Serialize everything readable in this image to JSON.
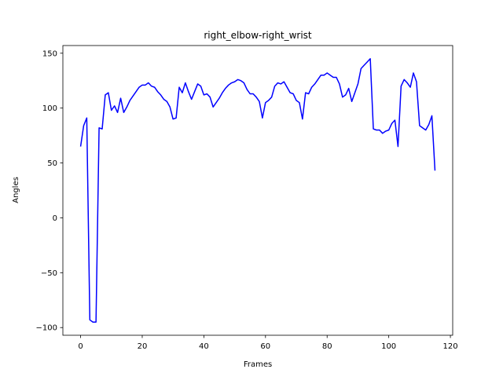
{
  "chart_data": {
    "type": "line",
    "title": "right_elbow-right_wrist",
    "xlabel": "Frames",
    "ylabel": "Angles",
    "x": [
      0,
      1,
      2,
      3,
      4,
      5,
      6,
      7,
      8,
      9,
      10,
      11,
      12,
      13,
      14,
      15,
      16,
      17,
      18,
      19,
      20,
      21,
      22,
      23,
      24,
      25,
      26,
      27,
      28,
      29,
      30,
      31,
      32,
      33,
      34,
      35,
      36,
      37,
      38,
      39,
      40,
      41,
      42,
      43,
      44,
      45,
      46,
      47,
      48,
      49,
      50,
      51,
      52,
      53,
      54,
      55,
      56,
      57,
      58,
      59,
      60,
      61,
      62,
      63,
      64,
      65,
      66,
      67,
      68,
      69,
      70,
      71,
      72,
      73,
      74,
      75,
      76,
      77,
      78,
      79,
      80,
      81,
      82,
      83,
      84,
      85,
      86,
      87,
      88,
      89,
      90,
      91,
      92,
      93,
      94,
      95,
      96,
      97,
      98,
      99,
      100,
      101,
      102,
      103,
      104,
      105,
      106,
      107,
      108,
      109,
      110,
      111,
      112,
      113,
      114,
      115
    ],
    "series": [
      {
        "color": "#0000ff",
        "values": [
          65,
          84,
          91,
          -93,
          -95,
          -95,
          82,
          81,
          112,
          114,
          98,
          102,
          96,
          109,
          96,
          101,
          107,
          111,
          115,
          119,
          121,
          121,
          123,
          120,
          119,
          115,
          112,
          108,
          106,
          101,
          90,
          91,
          119,
          114,
          123,
          115,
          108,
          115,
          122,
          120,
          112,
          113,
          110,
          101,
          105,
          109,
          114,
          118,
          121,
          123,
          124,
          126,
          125,
          123,
          117,
          113,
          113,
          110,
          106,
          91,
          105,
          107,
          110,
          120,
          123,
          122,
          124,
          119,
          114,
          113,
          107,
          105,
          90,
          114,
          113,
          119,
          122,
          126,
          130,
          130,
          132,
          130,
          128,
          128,
          122,
          110,
          112,
          118,
          106,
          114,
          122,
          136,
          139,
          142,
          145,
          81,
          80,
          80,
          77,
          79,
          80,
          86,
          89,
          65,
          120,
          126,
          123,
          119,
          132,
          124,
          84,
          82,
          80,
          85,
          93,
          43
        ]
      }
    ],
    "xlim": [
      -5.75,
      120.75
    ],
    "xticks": [
      0,
      20,
      40,
      60,
      80,
      100,
      120
    ],
    "ylim": [
      -107,
      157
    ],
    "yticks": [
      {
        "value": -100,
        "label": "−100"
      },
      {
        "value": -50,
        "label": "−50"
      },
      0,
      50,
      100,
      150
    ]
  }
}
